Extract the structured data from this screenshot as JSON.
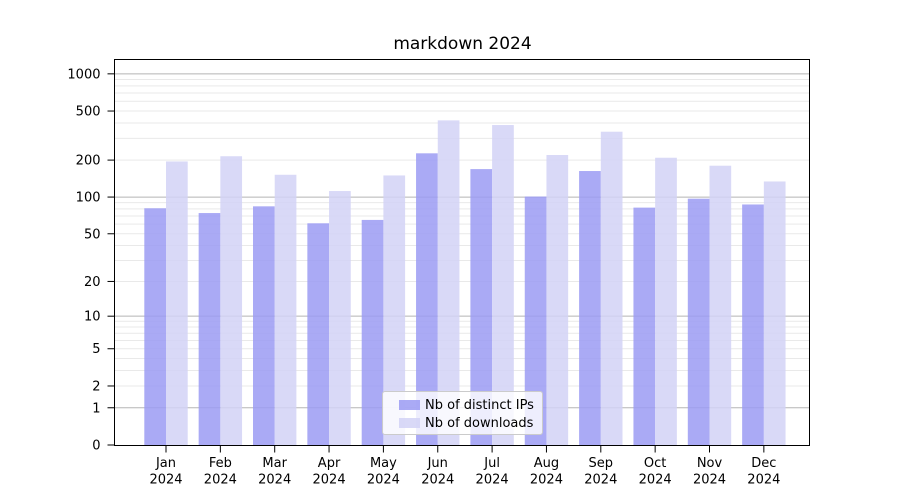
{
  "chart_data": {
    "type": "bar",
    "title": "markdown 2024",
    "x": {
      "months": [
        "Jan",
        "Feb",
        "Mar",
        "Apr",
        "May",
        "Jun",
        "Jul",
        "Aug",
        "Sep",
        "Oct",
        "Nov",
        "Dec"
      ],
      "year": "2024"
    },
    "series": [
      {
        "name": "Nb of distinct IPs",
        "color": "#9b9bf3",
        "visible_color": "#aaaaf5",
        "values": [
          81,
          74,
          84,
          61,
          65,
          227,
          169,
          101,
          163,
          82,
          97,
          87
        ]
      },
      {
        "name": "Nb of downloads",
        "color": "#d2d2f6",
        "visible_color": "#d9d9f7",
        "values": [
          195,
          215,
          152,
          112,
          150,
          420,
          385,
          220,
          340,
          209,
          180,
          134
        ]
      }
    ],
    "bar_opacity": 0.85,
    "y_ticks": [
      0,
      1,
      2,
      5,
      10,
      20,
      50,
      100,
      200,
      500,
      1000
    ],
    "y_scale": "log1p",
    "ylim": [
      0,
      1300
    ],
    "grid": true,
    "grid_major_color": "#b5b5b5",
    "grid_minor_color": "#e9e9e9",
    "axis_color": "#000000",
    "legend_position": "lower center"
  }
}
